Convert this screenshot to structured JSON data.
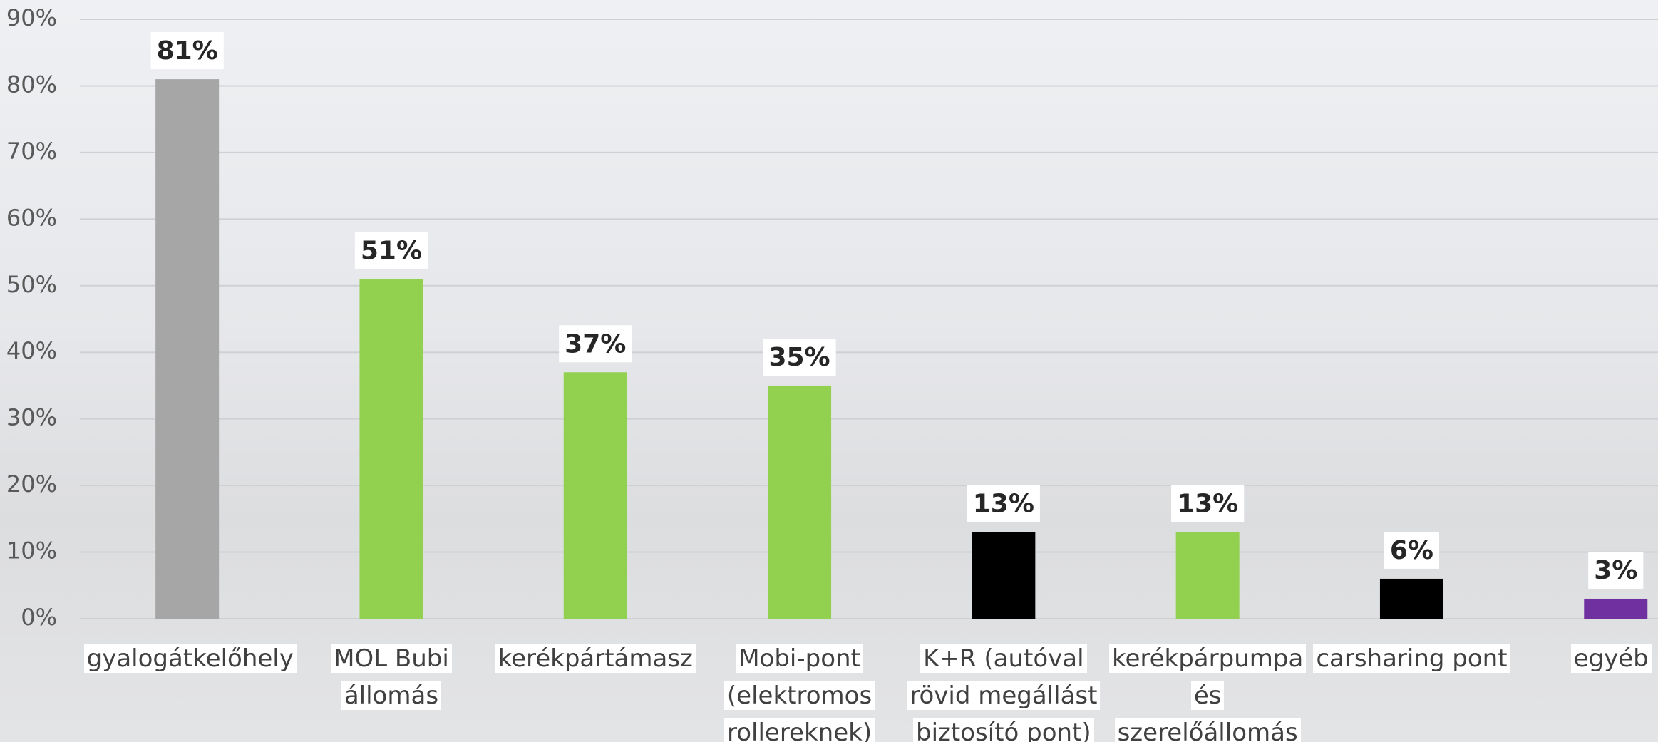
{
  "chart_data": {
    "type": "bar",
    "categories": [
      "gyalogátkelőhely",
      "MOL Bubi\nállomás",
      "kerékpártámasz",
      "Mobi-pont\n(elektromos\nrollereknek)",
      "K+R (autóval\nrövid megállást\nbiztosító pont)",
      "kerékpárpumpa\nés\nszerelőállomás",
      "carsharing pont",
      "egyéb"
    ],
    "values": [
      81,
      51,
      37,
      35,
      13,
      13,
      6,
      3
    ],
    "value_labels": [
      "81%",
      "51%",
      "37%",
      "35%",
      "13%",
      "13%",
      "6%",
      "3%"
    ],
    "colors": [
      "#a6a6a6",
      "#92d050",
      "#92d050",
      "#92d050",
      "#000000",
      "#92d050",
      "#000000",
      "#7030a0"
    ],
    "ylim": [
      0,
      90
    ],
    "yticks": [
      {
        "value": 0,
        "label": "0%"
      },
      {
        "value": 10,
        "label": "10%"
      },
      {
        "value": 20,
        "label": "20%"
      },
      {
        "value": 30,
        "label": "30%"
      },
      {
        "value": 40,
        "label": "40%"
      },
      {
        "value": 50,
        "label": "50%"
      },
      {
        "value": 60,
        "label": "60%"
      },
      {
        "value": 70,
        "label": "70%"
      },
      {
        "value": 80,
        "label": "80%"
      },
      {
        "value": 90,
        "label": "90%"
      }
    ],
    "grid": true
  }
}
